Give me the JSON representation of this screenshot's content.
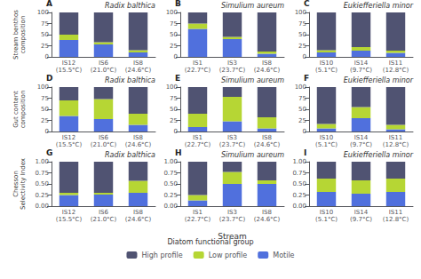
{
  "chart_data": [
    {
      "type": "bar",
      "title": "Radix balthica",
      "annotations": [
        "A"
      ],
      "ylabel": "Stream benthos\ncomposition",
      "categories": [
        "IS12\n(15.5°C)",
        "IS6\n(21.0°C)",
        "IS8\n(24.6°C)"
      ],
      "series": [
        {
          "name": "Motile",
          "values": [
            38,
            28,
            10
          ]
        },
        {
          "name": "Low profile",
          "values": [
            12,
            5,
            5
          ]
        },
        {
          "name": "High profile",
          "values": [
            50,
            67,
            85
          ]
        }
      ],
      "ylim": [
        0,
        100
      ],
      "yticks": [
        0,
        25,
        50,
        75,
        100
      ],
      "stacked": true,
      "grid": false,
      "legend": "bottom"
    },
    {
      "type": "bar",
      "title": "Simulium aureum",
      "annotations": [
        "B"
      ],
      "categories": [
        "IS1\n(22.7°C)",
        "IS3\n(23.7°C)",
        "IS8\n(24.6°C)"
      ],
      "series": [
        {
          "name": "Motile",
          "values": [
            63,
            40,
            7
          ]
        },
        {
          "name": "Low profile",
          "values": [
            12,
            5,
            5
          ]
        },
        {
          "name": "High profile",
          "values": [
            25,
            55,
            88
          ]
        }
      ],
      "ylim": [
        0,
        100
      ],
      "yticks": [
        0,
        25,
        50,
        75,
        100
      ],
      "stacked": true,
      "grid": false,
      "legend": "bottom"
    },
    {
      "type": "bar",
      "title": "Eukiefferiella minor",
      "annotations": [
        "C"
      ],
      "categories": [
        "IS10\n(5.1°C)",
        "IS14\n(9.7°C)",
        "IS11\n(12.8°C)"
      ],
      "series": [
        {
          "name": "Motile",
          "values": [
            10,
            14,
            9
          ]
        },
        {
          "name": "Low profile",
          "values": [
            5,
            8,
            5
          ]
        },
        {
          "name": "High profile",
          "values": [
            85,
            78,
            86
          ]
        }
      ],
      "ylim": [
        0,
        100
      ],
      "yticks": [
        0,
        25,
        50,
        75,
        100
      ],
      "stacked": true,
      "grid": false,
      "legend": "bottom"
    },
    {
      "type": "bar",
      "title": "Radix balthica",
      "annotations": [
        "D"
      ],
      "ylabel": "Gut content\ncomposition",
      "categories": [
        "IS12\n(15.5°C)",
        "IS6\n(21.0°C)",
        "IS8\n(24.6°C)"
      ],
      "series": [
        {
          "name": "Motile",
          "values": [
            35,
            28,
            15
          ]
        },
        {
          "name": "Low profile",
          "values": [
            35,
            45,
            25
          ]
        },
        {
          "name": "High profile",
          "values": [
            30,
            27,
            60
          ]
        }
      ],
      "ylim": [
        0,
        100
      ],
      "yticks": [
        0,
        25,
        50,
        75,
        100
      ],
      "stacked": true,
      "grid": false,
      "legend": "bottom"
    },
    {
      "type": "bar",
      "title": "Simulium aureum",
      "annotations": [
        "E"
      ],
      "categories": [
        "IS1\n(22.7°C)",
        "IS3\n(23.7°C)",
        "IS8\n(24.6°C)"
      ],
      "series": [
        {
          "name": "Motile",
          "values": [
            10,
            23,
            7
          ]
        },
        {
          "name": "Low profile",
          "values": [
            30,
            55,
            25
          ]
        },
        {
          "name": "High profile",
          "values": [
            60,
            22,
            68
          ]
        }
      ],
      "ylim": [
        0,
        100
      ],
      "yticks": [
        0,
        25,
        50,
        75,
        100
      ],
      "stacked": true,
      "grid": false,
      "legend": "bottom"
    },
    {
      "type": "bar",
      "title": "Eukiefferiella minor",
      "annotations": [
        "F"
      ],
      "categories": [
        "IS10\n(5.1°C)",
        "IS14\n(9.7°C)",
        "IS11\n(12.8°C)"
      ],
      "series": [
        {
          "name": "Motile",
          "values": [
            7,
            30,
            5
          ]
        },
        {
          "name": "Low profile",
          "values": [
            10,
            25,
            10
          ]
        },
        {
          "name": "High profile",
          "values": [
            83,
            45,
            85
          ]
        }
      ],
      "ylim": [
        0,
        100
      ],
      "yticks": [
        0,
        25,
        50,
        75,
        100
      ],
      "stacked": true,
      "grid": false,
      "legend": "bottom"
    },
    {
      "type": "bar",
      "title": "Radix balthica",
      "annotations": [
        "G"
      ],
      "ylabel": "Chesson\nSelectivity Index",
      "categories": [
        "IS12\n(15.5°C)",
        "IS6\n(21.0°C)",
        "IS8\n(24.6°C)"
      ],
      "series": [
        {
          "name": "Motile",
          "values": [
            0.25,
            0.26,
            0.3
          ]
        },
        {
          "name": "Low profile",
          "values": [
            0.05,
            0.04,
            0.27
          ]
        },
        {
          "name": "High profile",
          "values": [
            0.7,
            0.7,
            0.43
          ]
        }
      ],
      "ylim": [
        0,
        1.0
      ],
      "yticks": [
        {
          "value": 0,
          "label": "0.00"
        },
        0.25,
        {
          "value": 0.5,
          "label": "0.50"
        },
        0.75,
        {
          "value": 1.0,
          "label": "1.00"
        }
      ],
      "stacked": true,
      "grid": false,
      "legend": "bottom"
    },
    {
      "type": "bar",
      "title": "Simulium aureum",
      "annotations": [
        "H"
      ],
      "xlabel": "Stream",
      "legend_title": "Diatom functional group",
      "categories": [
        "IS1\n(22.7°C)",
        "IS3\n(23.7°C)",
        "IS8\n(24.6°C)"
      ],
      "series": [
        {
          "name": "Motile",
          "values": [
            0.13,
            0.5,
            0.5
          ]
        },
        {
          "name": "Low profile",
          "values": [
            0.12,
            0.27,
            0.08
          ]
        },
        {
          "name": "High profile",
          "values": [
            0.75,
            0.23,
            0.42
          ]
        }
      ],
      "ylim": [
        0,
        1.0
      ],
      "yticks": [
        {
          "value": 0,
          "label": "0.00"
        },
        0.25,
        {
          "value": 0.5,
          "label": "0.50"
        },
        0.75,
        {
          "value": 1.0,
          "label": "1.00"
        }
      ],
      "stacked": true,
      "grid": false,
      "legend": "bottom"
    },
    {
      "type": "bar",
      "title": "Eukiefferiella minor",
      "annotations": [
        "I"
      ],
      "categories": [
        "IS10\n(5.1°C)",
        "IS14\n(9.7°C)",
        "IS11\n(12.8°C)"
      ],
      "series": [
        {
          "name": "Motile",
          "values": [
            0.32,
            0.28,
            0.32
          ]
        },
        {
          "name": "Low profile",
          "values": [
            0.3,
            0.3,
            0.3
          ]
        },
        {
          "name": "High profile",
          "values": [
            0.38,
            0.42,
            0.38
          ]
        }
      ],
      "ylim": [
        0,
        1.0
      ],
      "yticks": [
        {
          "value": 0,
          "label": "0.00"
        },
        0.25,
        {
          "value": 0.5,
          "label": "0.50"
        },
        0.75,
        {
          "value": 1.0,
          "label": "1.00"
        }
      ],
      "stacked": true,
      "grid": false,
      "legend": "bottom"
    }
  ]
}
